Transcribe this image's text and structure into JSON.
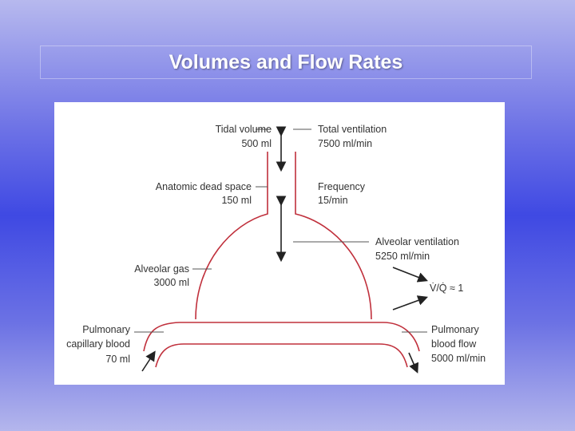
{
  "title": "Volumes and Flow Rates",
  "labels": [
    {
      "lines": [
        "Tidal volume",
        "500 ml"
      ]
    },
    {
      "lines": [
        "Anatomic dead space",
        "150 ml"
      ]
    },
    {
      "lines": [
        "Alveolar gas",
        "3000 ml"
      ]
    },
    {
      "lines": [
        "Pulmonary",
        "capillary blood",
        "70 ml"
      ]
    },
    {
      "lines": [
        "Total ventilation",
        "7500 ml/min"
      ]
    },
    {
      "lines": [
        "Frequency",
        "15/min"
      ]
    },
    {
      "lines": [
        "Alveolar ventilation",
        "5250 ml/min"
      ]
    },
    {
      "lines": [
        "V̇/Q̇ ≈ 1"
      ]
    },
    {
      "lines": [
        "Pulmonary",
        "blood flow",
        "5000 ml/min"
      ]
    }
  ]
}
